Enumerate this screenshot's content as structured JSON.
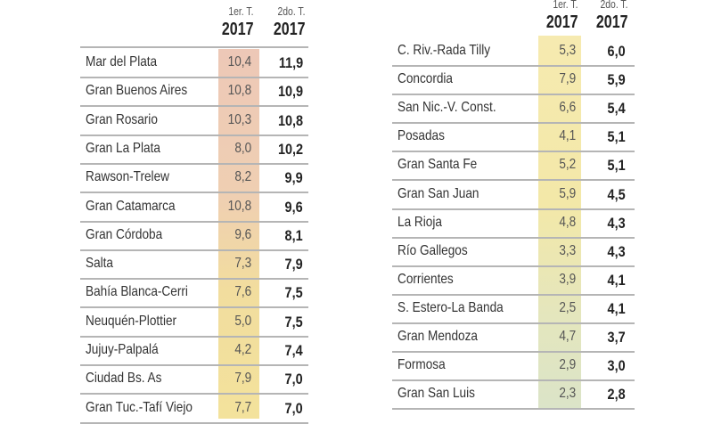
{
  "headers": {
    "col1_period": "1er. T.",
    "col1_year": "2017",
    "col2_period": "2do. T.",
    "col2_year": "2017"
  },
  "left_table": [
    {
      "name": "Mar del Plata",
      "t1": "10,4",
      "t2": "11,9"
    },
    {
      "name": "Gran Buenos Aires",
      "t1": "10,8",
      "t2": "10,9"
    },
    {
      "name": "Gran Rosario",
      "t1": "10,3",
      "t2": "10,8"
    },
    {
      "name": "Gran La Plata",
      "t1": "8,0",
      "t2": "10,2"
    },
    {
      "name": "Rawson-Trelew",
      "t1": "8,2",
      "t2": "9,9"
    },
    {
      "name": "Gran Catamarca",
      "t1": "10,8",
      "t2": "9,6"
    },
    {
      "name": "Gran Córdoba",
      "t1": "9,6",
      "t2": "8,1"
    },
    {
      "name": "Salta",
      "t1": "7,3",
      "t2": "7,9"
    },
    {
      "name": "Bahía Blanca-Cerri",
      "t1": "7,6",
      "t2": "7,5"
    },
    {
      "name": "Neuquén-Plottier",
      "t1": "5,0",
      "t2": "7,5"
    },
    {
      "name": "Jujuy-Palpalá",
      "t1": "4,2",
      "t2": "7,4"
    },
    {
      "name": "Ciudad Bs. As",
      "t1": "7,9",
      "t2": "7,0"
    },
    {
      "name": "Gran Tuc.-Tafí Viejo",
      "t1": "7,7",
      "t2": "7,0"
    }
  ],
  "right_table": [
    {
      "name": "C. Riv.-Rada Tilly",
      "t1": "5,3",
      "t2": "6,0"
    },
    {
      "name": "Concordia",
      "t1": "7,9",
      "t2": "5,9"
    },
    {
      "name": "San Nic.-V. Const.",
      "t1": "6,6",
      "t2": "5,4"
    },
    {
      "name": "Posadas",
      "t1": "4,1",
      "t2": "5,1"
    },
    {
      "name": "Gran Santa Fe",
      "t1": "5,2",
      "t2": "5,1"
    },
    {
      "name": "Gran San Juan",
      "t1": "5,9",
      "t2": "4,5"
    },
    {
      "name": "La Rioja",
      "t1": "4,8",
      "t2": "4,3"
    },
    {
      "name": "Río Gallegos",
      "t1": "3,3",
      "t2": "4,3"
    },
    {
      "name": "Corrientes",
      "t1": "3,9",
      "t2": "4,1"
    },
    {
      "name": "S. Estero-La Banda",
      "t1": "2,5",
      "t2": "4,1"
    },
    {
      "name": "Gran Mendoza",
      "t1": "4,7",
      "t2": "3,7"
    },
    {
      "name": "Formosa",
      "t1": "2,9",
      "t2": "3,0"
    },
    {
      "name": "Gran San Luis",
      "t1": "2,3",
      "t2": "2,8"
    }
  ],
  "colors": {
    "left_shade_top": "#edc8b7",
    "left_shade_bottom": "#f3e29c",
    "right_shade_top": "#f6eab0",
    "right_shade_bottom": "#dbe4c8"
  }
}
